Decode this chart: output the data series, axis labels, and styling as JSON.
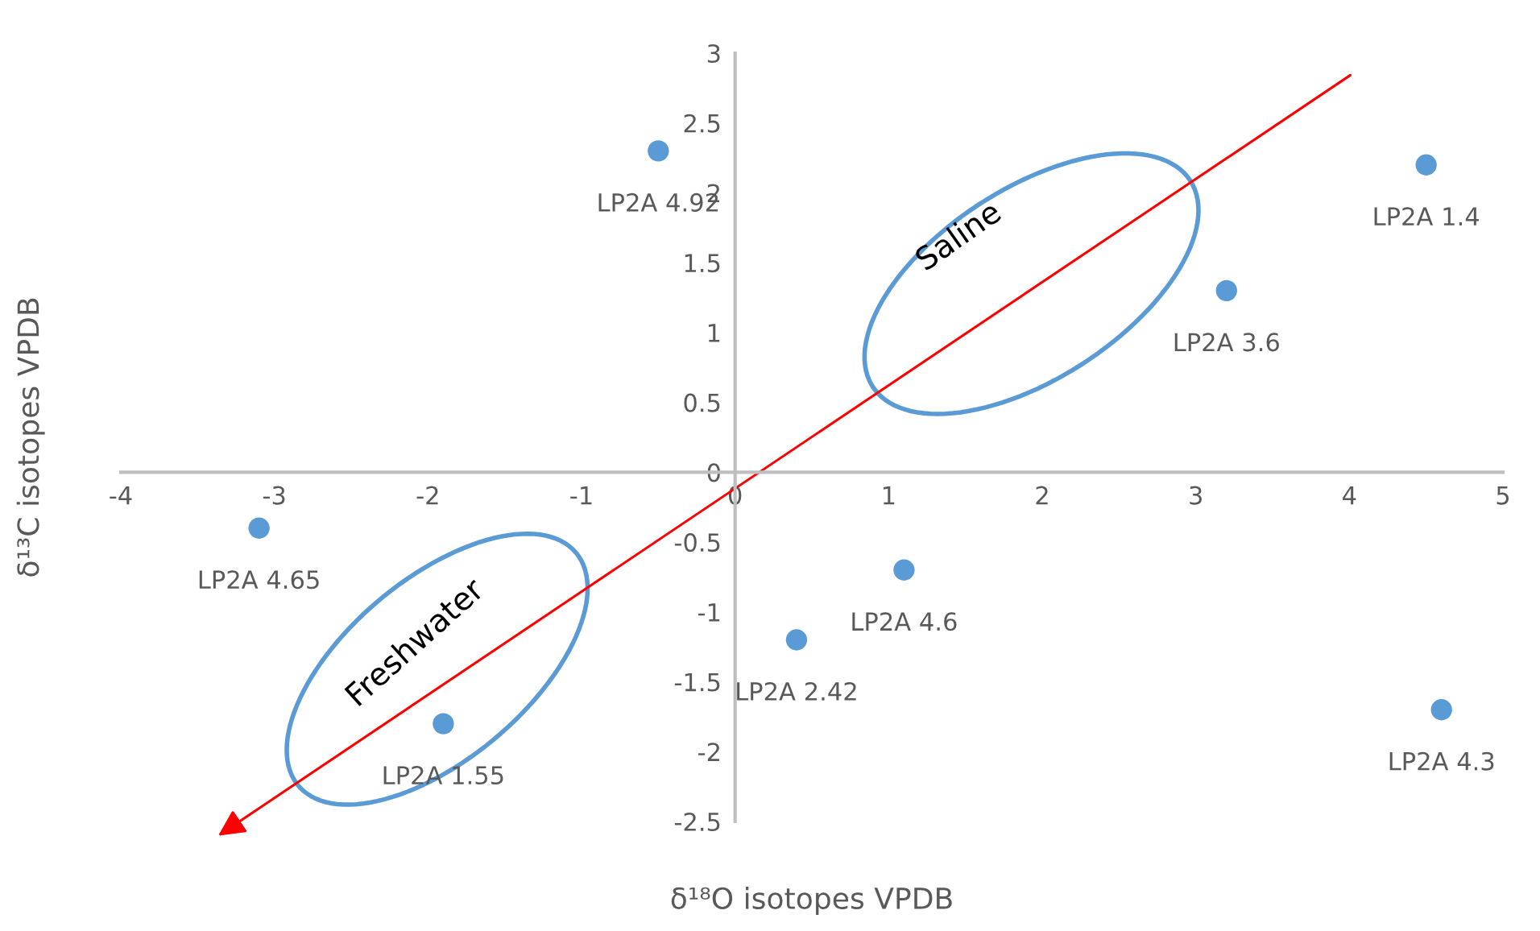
{
  "chart_data": {
    "type": "scatter",
    "xlabel": "δ¹⁸O isotopes VPDB",
    "ylabel": "δ¹³C isotopes VPDB",
    "x": [
      -0.5,
      4.5,
      3.2,
      -3.1,
      1.1,
      0.4,
      -1.9,
      4.6
    ],
    "values": [
      2.3,
      2.2,
      1.3,
      -0.4,
      -0.7,
      -1.2,
      -1.8,
      -1.7
    ],
    "color": "#5b9bd5",
    "marker": "circle",
    "xlim": [
      -4,
      5
    ],
    "xticks": [
      -4,
      -3,
      -2,
      -1,
      0,
      1,
      2,
      3,
      4,
      5
    ],
    "ylim": [
      -2.5,
      3
    ],
    "yticks": [
      -2.5,
      -2,
      -1.5,
      -1,
      -0.5,
      0,
      0.5,
      1,
      1.5,
      2,
      2.5,
      3
    ],
    "annotations": [
      {
        "text": "LP2A 4.92",
        "x": -0.5,
        "y": 2.3
      },
      {
        "text": "LP2A 1.4",
        "x": 4.5,
        "y": 2.2
      },
      {
        "text": "LP2A 3.6",
        "x": 3.2,
        "y": 1.3
      },
      {
        "text": "LP2A 4.65",
        "x": -3.1,
        "y": -0.4
      },
      {
        "text": "LP2A 4.6",
        "x": 1.1,
        "y": -0.7
      },
      {
        "text": "LP2A 2.42",
        "x": 0.4,
        "y": -1.2
      },
      {
        "text": "LP2A 1.55",
        "x": -1.9,
        "y": -1.8
      },
      {
        "text": "LP2A 4.3",
        "x": 4.6,
        "y": -1.7
      },
      "Saline",
      "Freshwater"
    ]
  }
}
